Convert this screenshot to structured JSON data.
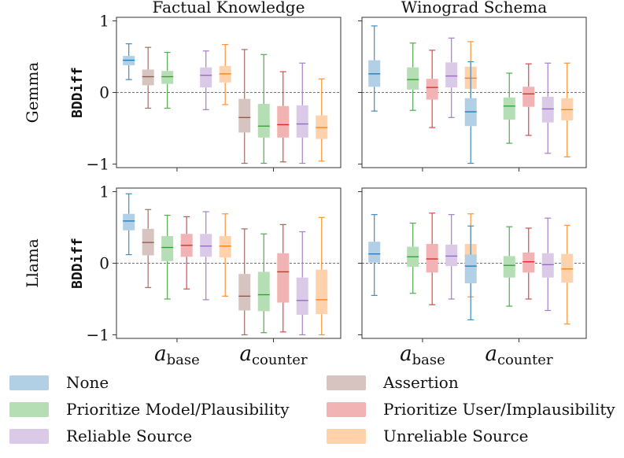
{
  "chart_data": {
    "type": "box",
    "column_titles": [
      "Factual Knowledge",
      "Winograd Schema"
    ],
    "row_labels": [
      "Gemma",
      "Llama"
    ],
    "ylabel": "BDDiff",
    "ylim": [
      -1.05,
      1.05
    ],
    "yticks": [
      -1,
      0,
      1
    ],
    "ytick_labels": [
      "−1",
      "0",
      "1"
    ],
    "reference_line": 0,
    "x_groups": [
      {
        "main": "a",
        "sub": "base"
      },
      {
        "main": "a",
        "sub": "counter"
      }
    ],
    "series": [
      {
        "name": "None",
        "color": "#1f77b4"
      },
      {
        "name": "Assertion",
        "color": "#8c564b"
      },
      {
        "name": "Prioritize Model/Plausibility",
        "color": "#2ca02c"
      },
      {
        "name": "Prioritize User/Implausibility",
        "color": "#d62728"
      },
      {
        "name": "Reliable Source",
        "color": "#9467bd"
      },
      {
        "name": "Unreliable Source",
        "color": "#ff7f0e"
      }
    ],
    "legend_position": "bottom",
    "panels": [
      {
        "row": "Gemma",
        "column": "Factual Knowledge",
        "groups": [
          {
            "group": "base",
            "boxes": [
              {
                "series": "None",
                "whislo": 0.18,
                "q1": 0.38,
                "med": 0.45,
                "q3": 0.51,
                "whishi": 0.68
              },
              {
                "series": "Assertion",
                "whislo": -0.22,
                "q1": 0.1,
                "med": 0.22,
                "q3": 0.32,
                "whishi": 0.63
              },
              {
                "series": "Prioritize Model/Plausibility",
                "whislo": -0.22,
                "q1": 0.12,
                "med": 0.22,
                "q3": 0.3,
                "whishi": 0.56
              },
              {
                "series": "Reliable Source",
                "whislo": -0.24,
                "q1": 0.07,
                "med": 0.24,
                "q3": 0.35,
                "whishi": 0.58
              },
              {
                "series": "Unreliable Source",
                "whislo": -0.17,
                "q1": 0.14,
                "med": 0.26,
                "q3": 0.37,
                "whishi": 0.67
              }
            ]
          },
          {
            "group": "counter",
            "boxes": [
              {
                "series": "Assertion",
                "whislo": -0.99,
                "q1": -0.56,
                "med": -0.35,
                "q3": -0.09,
                "whishi": 0.6
              },
              {
                "series": "Prioritize Model/Plausibility",
                "whislo": -0.99,
                "q1": -0.63,
                "med": -0.47,
                "q3": -0.16,
                "whishi": 0.53
              },
              {
                "series": "Prioritize User/Implausibility",
                "whislo": -0.97,
                "q1": -0.63,
                "med": -0.45,
                "q3": -0.19,
                "whishi": 0.29
              },
              {
                "series": "Reliable Source",
                "whislo": -0.99,
                "q1": -0.63,
                "med": -0.44,
                "q3": -0.18,
                "whishi": 0.41
              },
              {
                "series": "Unreliable Source",
                "whislo": -0.96,
                "q1": -0.65,
                "med": -0.49,
                "q3": -0.32,
                "whishi": 0.19
              }
            ]
          }
        ]
      },
      {
        "row": "Gemma",
        "column": "Winograd Schema",
        "groups": [
          {
            "group": "base",
            "boxes": [
              {
                "series": "None",
                "whislo": -0.26,
                "q1": 0.08,
                "med": 0.26,
                "q3": 0.45,
                "whishi": 0.93
              },
              {
                "series": "Prioritize Model/Plausibility",
                "whislo": -0.25,
                "q1": 0.04,
                "med": 0.18,
                "q3": 0.35,
                "whishi": 0.69
              },
              {
                "series": "Prioritize User/Implausibility",
                "whislo": -0.49,
                "q1": -0.1,
                "med": 0.07,
                "q3": 0.19,
                "whishi": 0.59
              },
              {
                "series": "Reliable Source",
                "whislo": -0.35,
                "q1": 0.07,
                "med": 0.23,
                "q3": 0.42,
                "whishi": 0.76
              },
              {
                "series": "Unreliable Source",
                "whislo": -0.3,
                "q1": 0.05,
                "med": 0.2,
                "q3": 0.36,
                "whishi": 0.71
              }
            ]
          },
          {
            "group": "counter",
            "boxes": [
              {
                "series": "None",
                "whislo": -0.99,
                "q1": -0.47,
                "med": -0.27,
                "q3": -0.08,
                "whishi": 0.43
              },
              {
                "series": "Prioritize Model/Plausibility",
                "whislo": -0.71,
                "q1": -0.38,
                "med": -0.19,
                "q3": -0.07,
                "whishi": 0.27
              },
              {
                "series": "Prioritize User/Implausibility",
                "whislo": -0.6,
                "q1": -0.2,
                "med": -0.02,
                "q3": 0.08,
                "whishi": 0.4
              },
              {
                "series": "Reliable Source",
                "whislo": -0.85,
                "q1": -0.42,
                "med": -0.23,
                "q3": -0.06,
                "whishi": 0.41
              },
              {
                "series": "Unreliable Source",
                "whislo": -0.9,
                "q1": -0.39,
                "med": -0.24,
                "q3": -0.08,
                "whishi": 0.41
              }
            ]
          }
        ]
      },
      {
        "row": "Llama",
        "column": "Factual Knowledge",
        "groups": [
          {
            "group": "base",
            "boxes": [
              {
                "series": "None",
                "whislo": 0.12,
                "q1": 0.46,
                "med": 0.59,
                "q3": 0.69,
                "whishi": 0.97
              },
              {
                "series": "Assertion",
                "whislo": -0.34,
                "q1": 0.11,
                "med": 0.29,
                "q3": 0.48,
                "whishi": 0.75
              },
              {
                "series": "Prioritize Model/Plausibility",
                "whislo": -0.5,
                "q1": 0.03,
                "med": 0.22,
                "q3": 0.38,
                "whishi": 0.67
              },
              {
                "series": "Prioritize User/Implausibility",
                "whislo": -0.36,
                "q1": 0.09,
                "med": 0.25,
                "q3": 0.41,
                "whishi": 0.65
              },
              {
                "series": "Reliable Source",
                "whislo": -0.51,
                "q1": 0.09,
                "med": 0.24,
                "q3": 0.41,
                "whishi": 0.72
              },
              {
                "series": "Unreliable Source",
                "whislo": -0.46,
                "q1": 0.08,
                "med": 0.24,
                "q3": 0.38,
                "whishi": 0.69
              }
            ]
          },
          {
            "group": "counter",
            "boxes": [
              {
                "series": "Assertion",
                "whislo": -1.0,
                "q1": -0.66,
                "med": -0.46,
                "q3": -0.15,
                "whishi": 0.48
              },
              {
                "series": "Prioritize Model/Plausibility",
                "whislo": -0.97,
                "q1": -0.67,
                "med": -0.44,
                "q3": -0.12,
                "whishi": 0.41
              },
              {
                "series": "Prioritize User/Implausibility",
                "whislo": -0.96,
                "q1": -0.55,
                "med": -0.12,
                "q3": 0.14,
                "whishi": 0.54
              },
              {
                "series": "Reliable Source",
                "whislo": -1.0,
                "q1": -0.72,
                "med": -0.52,
                "q3": -0.2,
                "whishi": 0.44
              },
              {
                "series": "Unreliable Source",
                "whislo": -1.0,
                "q1": -0.71,
                "med": -0.51,
                "q3": -0.09,
                "whishi": 0.64
              }
            ]
          }
        ]
      },
      {
        "row": "Llama",
        "column": "Winograd Schema",
        "groups": [
          {
            "group": "base",
            "boxes": [
              {
                "series": "None",
                "whislo": -0.45,
                "q1": 0.01,
                "med": 0.13,
                "q3": 0.3,
                "whishi": 0.68
              },
              {
                "series": "Prioritize Model/Plausibility",
                "whislo": -0.42,
                "q1": -0.05,
                "med": 0.09,
                "q3": 0.23,
                "whishi": 0.56
              },
              {
                "series": "Prioritize User/Implausibility",
                "whislo": -0.58,
                "q1": -0.13,
                "med": 0.06,
                "q3": 0.27,
                "whishi": 0.7
              },
              {
                "series": "Reliable Source",
                "whislo": -0.5,
                "q1": -0.04,
                "med": 0.1,
                "q3": 0.26,
                "whishi": 0.68
              },
              {
                "series": "Unreliable Source",
                "whislo": -0.47,
                "q1": -0.05,
                "med": 0.11,
                "q3": 0.27,
                "whishi": 0.69
              }
            ]
          },
          {
            "group": "counter",
            "boxes": [
              {
                "series": "None",
                "whislo": -0.79,
                "q1": -0.28,
                "med": -0.04,
                "q3": 0.12,
                "whishi": 0.52
              },
              {
                "series": "Prioritize Model/Plausibility",
                "whislo": -0.6,
                "q1": -0.2,
                "med": -0.03,
                "q3": 0.1,
                "whishi": 0.51
              },
              {
                "series": "Prioritize User/Implausibility",
                "whislo": -0.5,
                "q1": -0.13,
                "med": 0.02,
                "q3": 0.15,
                "whishi": 0.49
              },
              {
                "series": "Reliable Source",
                "whislo": -0.66,
                "q1": -0.2,
                "med": -0.02,
                "q3": 0.14,
                "whishi": 0.63
              },
              {
                "series": "Unreliable Source",
                "whislo": -0.85,
                "q1": -0.27,
                "med": -0.08,
                "q3": 0.13,
                "whishi": 0.53
              }
            ]
          }
        ]
      }
    ]
  }
}
